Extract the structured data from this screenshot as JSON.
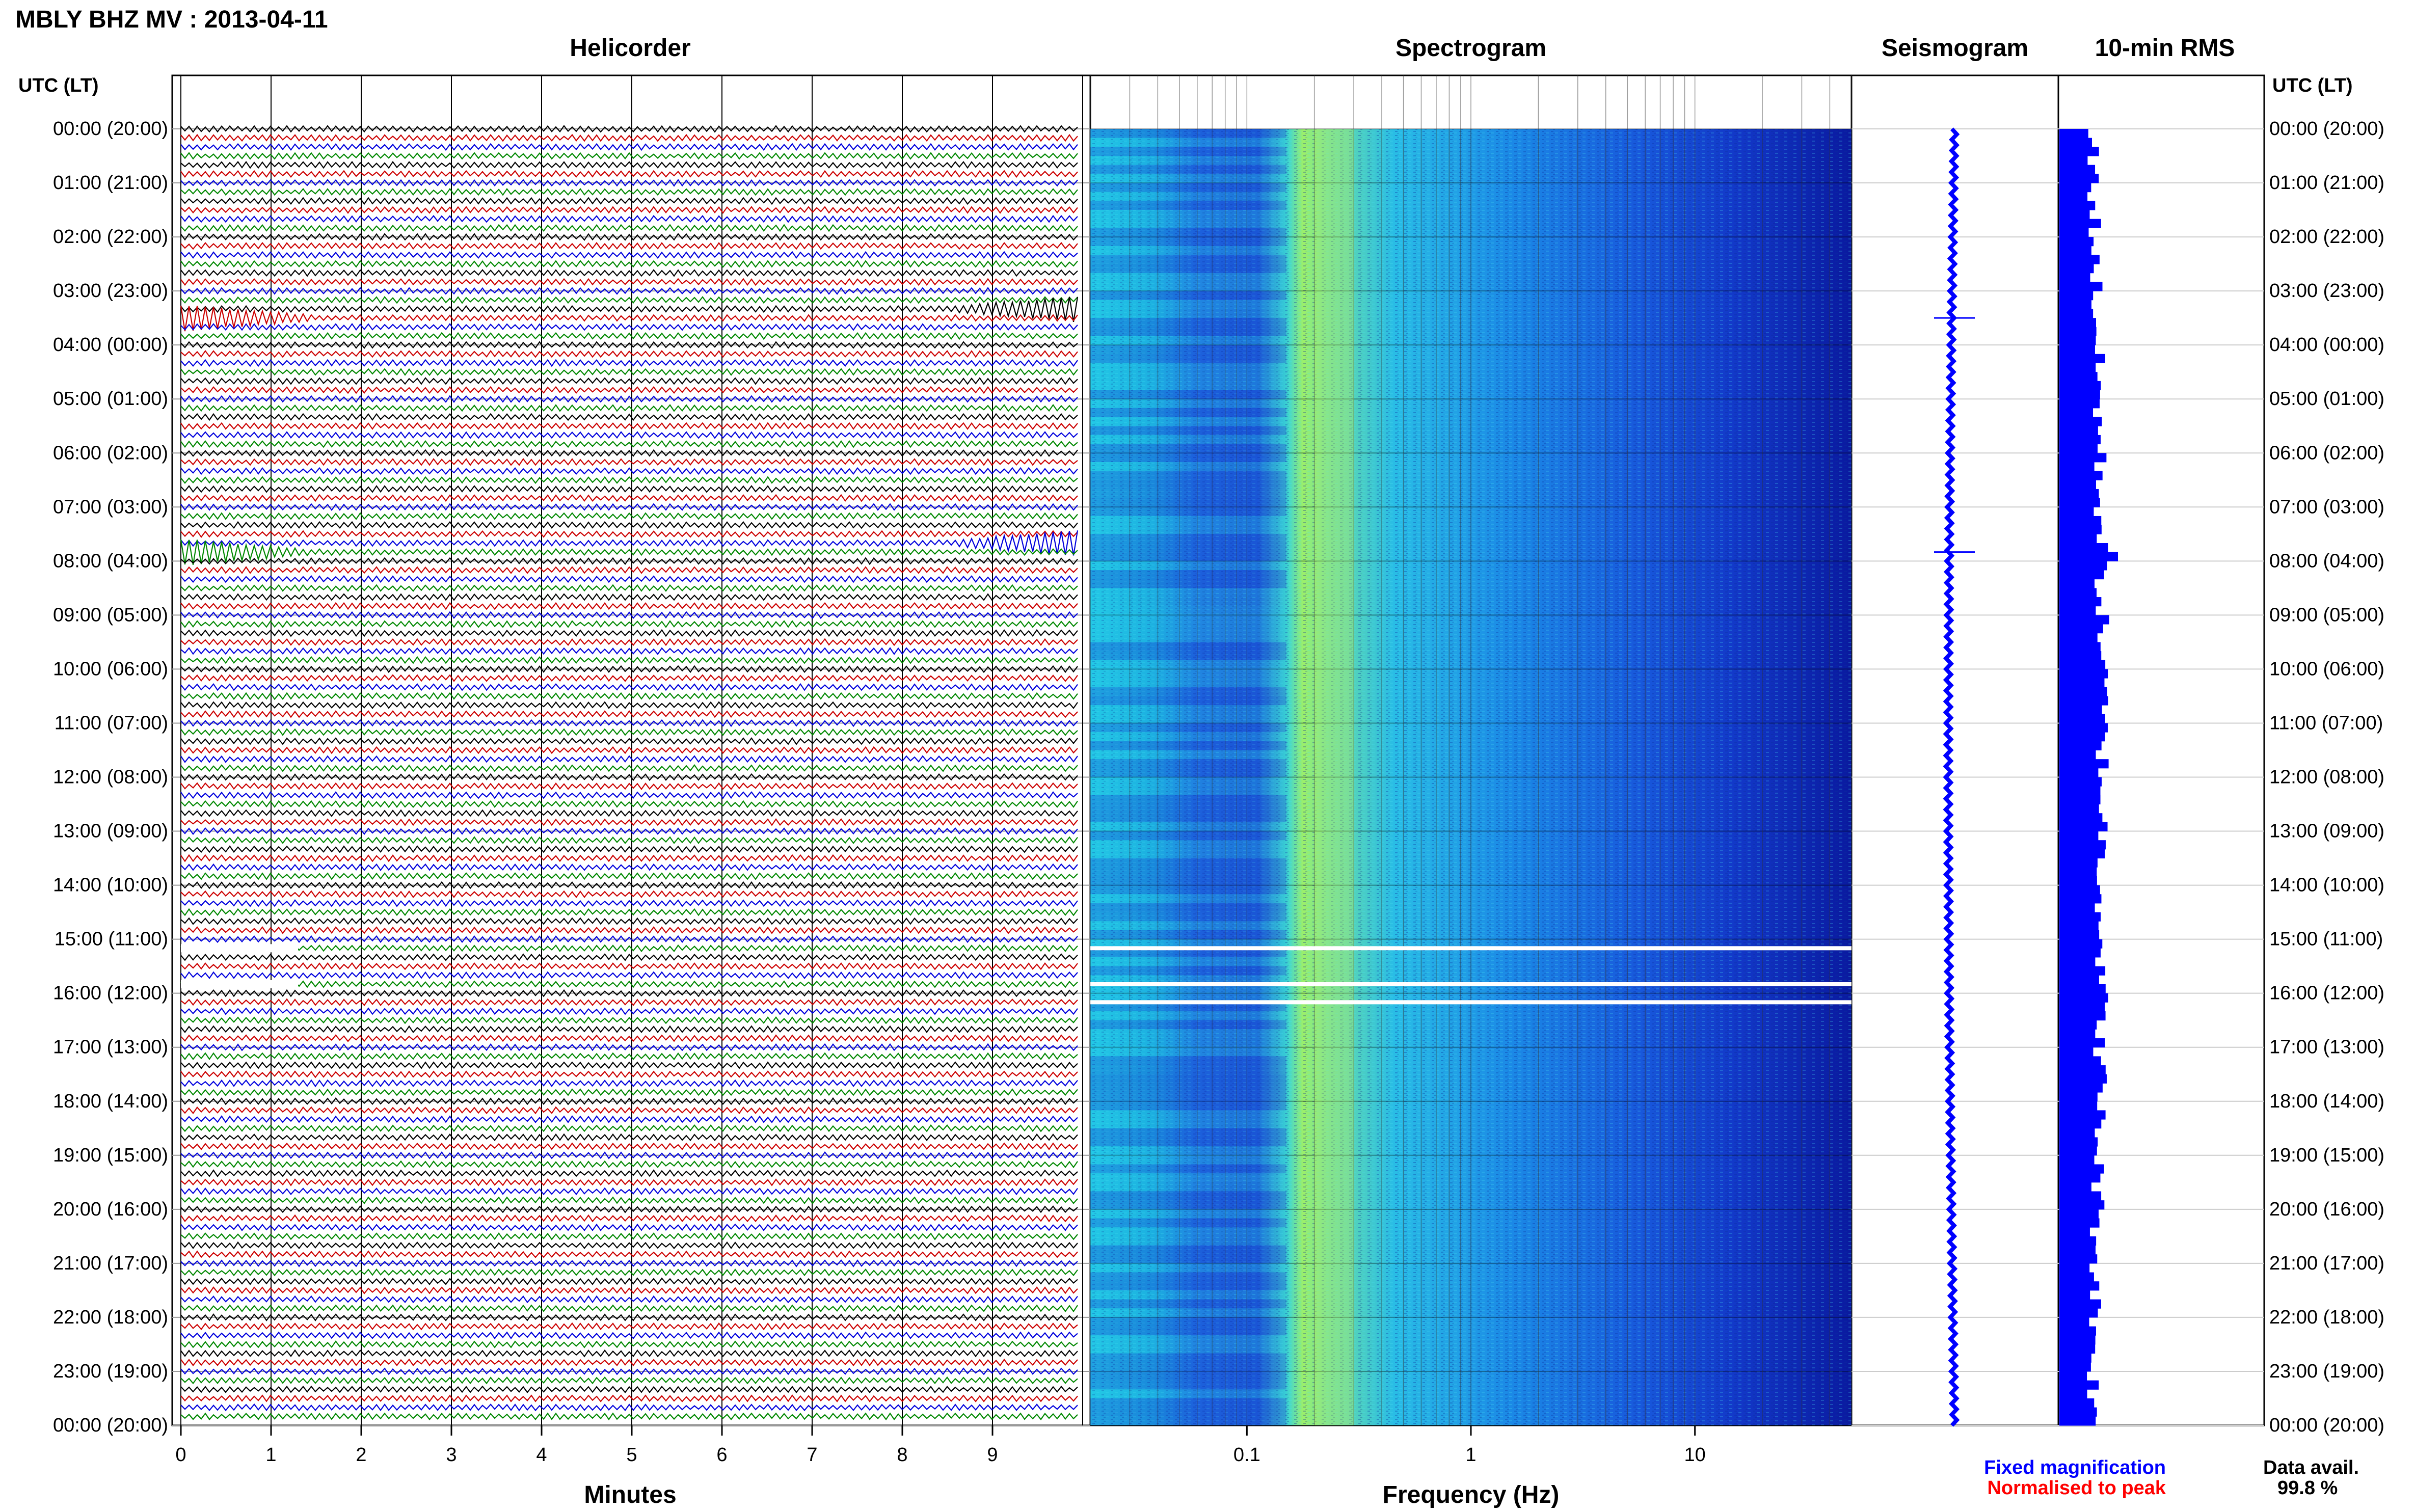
{
  "title": "MBLY BHZ MV : 2013-04-11",
  "panels": {
    "helicorder": "Helicorder",
    "spectrogram": "Spectrogram",
    "seismogram": "Seismogram",
    "rms": "10-min RMS"
  },
  "time_header_left": "UTC (LT)",
  "time_header_right": "UTC (LT)",
  "time_labels": [
    "00:00 (20:00)",
    "01:00 (21:00)",
    "02:00 (22:00)",
    "03:00 (23:00)",
    "04:00 (00:00)",
    "05:00 (01:00)",
    "06:00 (02:00)",
    "07:00 (03:00)",
    "08:00 (04:00)",
    "09:00 (05:00)",
    "10:00 (06:00)",
    "11:00 (07:00)",
    "12:00 (08:00)",
    "13:00 (09:00)",
    "14:00 (10:00)",
    "15:00 (11:00)",
    "16:00 (12:00)",
    "17:00 (13:00)",
    "18:00 (14:00)",
    "19:00 (15:00)",
    "20:00 (16:00)",
    "21:00 (17:00)",
    "22:00 (18:00)",
    "23:00 (19:00)",
    "00:00 (20:00)"
  ],
  "minutes_ticks": [
    "0",
    "1",
    "2",
    "3",
    "4",
    "5",
    "6",
    "7",
    "8",
    "9"
  ],
  "minutes_label": "Minutes",
  "freq_ticks": [
    "0.1",
    "1",
    "10"
  ],
  "freq_label": "Frequency (Hz)",
  "legend": {
    "fixed": "Fixed magnification",
    "normalised": "Normalised to peak",
    "fixed_color": "#0000ff",
    "normalised_color": "#ff0000"
  },
  "data_avail": {
    "label": "Data avail.",
    "value": "99.8 %"
  },
  "trace_colors": [
    "#000000",
    "#cc0000",
    "#0000dd",
    "#008800"
  ],
  "chart_data": {
    "type": "heatmap",
    "title": "MBLY BHZ MV : 2013-04-11",
    "helicorder": {
      "x_axis": "Minutes",
      "xlim": [
        0,
        10
      ],
      "rows_per_hour": 6,
      "hours": 24,
      "events": [
        {
          "time_utc": "07:50",
          "minute": 9.5,
          "description": "large amplitude burst"
        },
        {
          "time_utc": "03:30",
          "minute": 1.0,
          "description": "small spike"
        }
      ],
      "gaps_utc": [
        "15:10",
        "15:50"
      ]
    },
    "spectrogram": {
      "x_axis": "Frequency (Hz)",
      "scale": "log",
      "xlim": [
        0.02,
        50
      ],
      "peak_band_hz": [
        0.2,
        0.3
      ],
      "gaps_utc": [
        "15:10",
        "15:50",
        "16:10"
      ]
    },
    "seismogram": {
      "event_utc": [
        "03:30",
        "07:50"
      ]
    },
    "rms_10min": {
      "interval_minutes": 10,
      "peak_utc": "07:50"
    },
    "data_availability_percent": 99.8
  }
}
